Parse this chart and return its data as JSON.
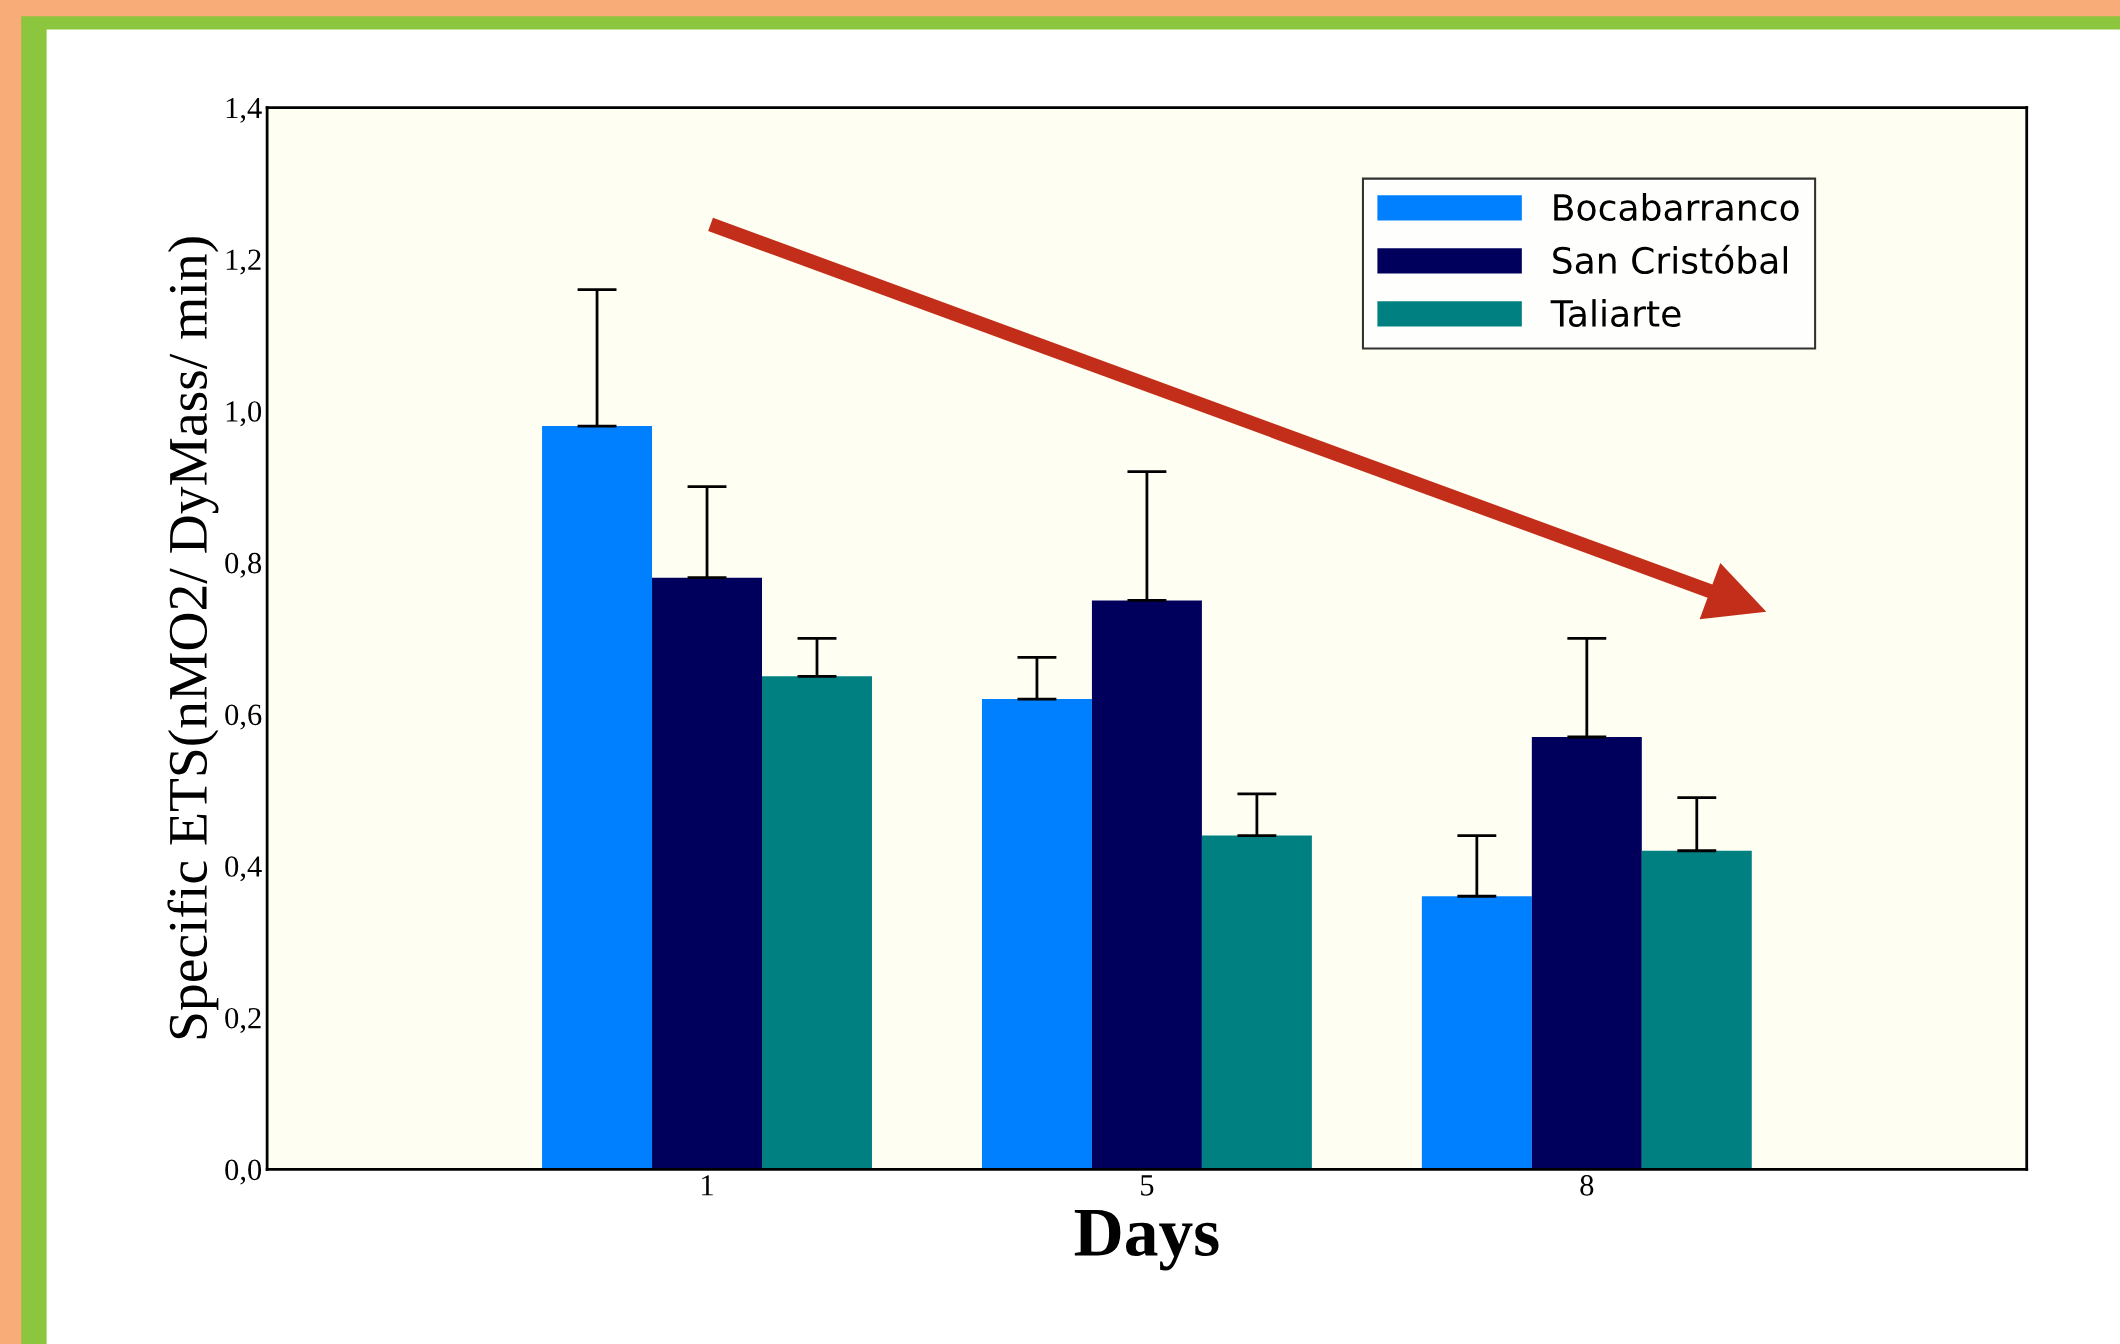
{
  "chart_data": {
    "type": "bar",
    "xlabel": "Days",
    "ylabel": "Specific ETS(nMO2/ DyMass/ min)",
    "categories": [
      "1",
      "5",
      "8"
    ],
    "series": [
      {
        "name": "Bocabarranco",
        "color": "#0080ff",
        "values": [
          0.98,
          0.62,
          0.36
        ],
        "errors": [
          0.18,
          0.055,
          0.08
        ]
      },
      {
        "name": "San Cristóbal",
        "color": "#00005c",
        "values": [
          0.78,
          0.75,
          0.57
        ],
        "errors": [
          0.12,
          0.17,
          0.13
        ]
      },
      {
        "name": "Taliarte",
        "color": "#008080",
        "values": [
          0.65,
          0.44,
          0.42
        ],
        "errors": [
          0.05,
          0.055,
          0.07
        ]
      }
    ],
    "ylim": [
      0,
      1.4
    ],
    "yticks": [
      {
        "value": 0,
        "label": "0,0"
      },
      {
        "value": 0.2,
        "label": "0,2"
      },
      {
        "value": 0.4,
        "label": "0,4"
      },
      {
        "value": 0.6,
        "label": "0,6"
      },
      {
        "value": 0.8,
        "label": "0,8"
      },
      {
        "value": 1.0,
        "label": "1,0"
      },
      {
        "value": 1.2,
        "label": "1,2"
      },
      {
        "value": 1.4,
        "label": "1,4"
      }
    ],
    "legend": "top right",
    "grid": false
  }
}
